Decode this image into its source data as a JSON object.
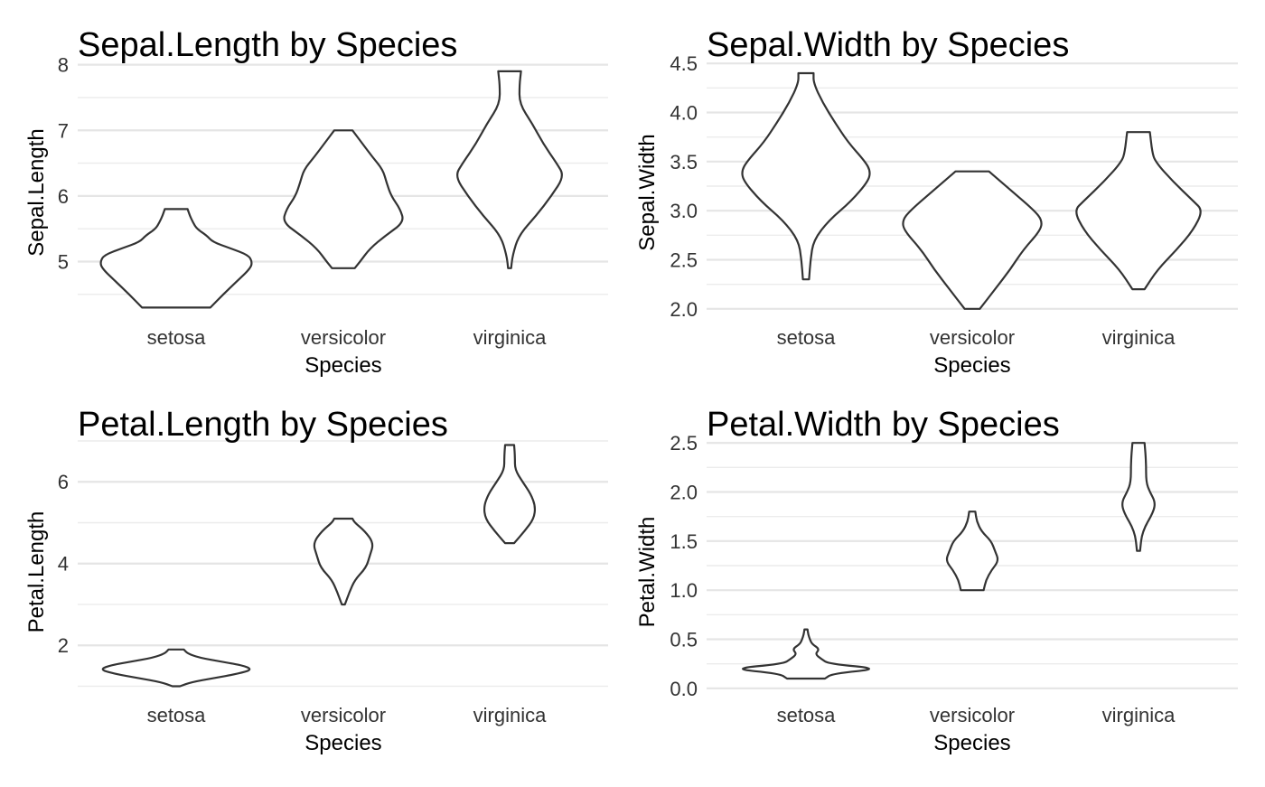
{
  "chart_data": [
    {
      "type": "violin",
      "title": "Sepal.Length by Species",
      "xlabel": "Species",
      "ylabel": "Sepal.Length",
      "categories": [
        "setosa",
        "versicolor",
        "virginica"
      ],
      "ylim": [
        4.25,
        8.05
      ],
      "yticks": [
        5,
        6,
        7,
        8
      ],
      "yticks_labels": [
        "5",
        "6",
        "7",
        "8"
      ],
      "yminor": [
        4.5,
        5.5,
        6.5,
        7.5
      ],
      "violins": [
        {
          "category": "setosa",
          "min": 4.3,
          "max": 5.8,
          "profile": [
            [
              4.3,
              0.45
            ],
            [
              4.5,
              0.62
            ],
            [
              4.7,
              0.8
            ],
            [
              4.9,
              0.98
            ],
            [
              5.0,
              1.0
            ],
            [
              5.1,
              0.95
            ],
            [
              5.2,
              0.72
            ],
            [
              5.3,
              0.48
            ],
            [
              5.4,
              0.4
            ],
            [
              5.5,
              0.27
            ],
            [
              5.6,
              0.22
            ],
            [
              5.7,
              0.18
            ],
            [
              5.8,
              0.15
            ]
          ]
        },
        {
          "category": "versicolor",
          "min": 4.9,
          "max": 7.0,
          "profile": [
            [
              4.9,
              0.15
            ],
            [
              5.0,
              0.22
            ],
            [
              5.2,
              0.35
            ],
            [
              5.4,
              0.56
            ],
            [
              5.6,
              0.8
            ],
            [
              5.8,
              0.75
            ],
            [
              6.0,
              0.63
            ],
            [
              6.2,
              0.57
            ],
            [
              6.4,
              0.52
            ],
            [
              6.6,
              0.38
            ],
            [
              6.8,
              0.25
            ],
            [
              7.0,
              0.12
            ]
          ]
        },
        {
          "category": "virginica",
          "min": 4.9,
          "max": 7.9,
          "profile": [
            [
              4.9,
              0.02
            ],
            [
              5.1,
              0.04
            ],
            [
              5.4,
              0.12
            ],
            [
              5.7,
              0.35
            ],
            [
              6.0,
              0.55
            ],
            [
              6.3,
              0.72
            ],
            [
              6.5,
              0.62
            ],
            [
              6.8,
              0.44
            ],
            [
              7.1,
              0.3
            ],
            [
              7.4,
              0.13
            ],
            [
              7.7,
              0.13
            ],
            [
              7.9,
              0.15
            ]
          ]
        }
      ]
    },
    {
      "type": "violin",
      "title": "Sepal.Width by Species",
      "xlabel": "Species",
      "ylabel": "Sepal.Width",
      "categories": [
        "setosa",
        "versicolor",
        "virginica"
      ],
      "ylim": [
        1.98,
        4.52
      ],
      "yticks": [
        2.0,
        2.5,
        3.0,
        3.5,
        4.0,
        4.5
      ],
      "yticks_labels": [
        "2.0",
        "2.5",
        "3.0",
        "3.5",
        "4.0",
        "4.5"
      ],
      "yminor": [
        2.25,
        2.75,
        3.25,
        3.75,
        4.25
      ],
      "violins": [
        {
          "category": "setosa",
          "min": 2.3,
          "max": 4.4,
          "profile": [
            [
              2.3,
              0.04
            ],
            [
              2.5,
              0.06
            ],
            [
              2.7,
              0.1
            ],
            [
              2.9,
              0.3
            ],
            [
              3.1,
              0.6
            ],
            [
              3.3,
              0.82
            ],
            [
              3.4,
              0.85
            ],
            [
              3.5,
              0.78
            ],
            [
              3.7,
              0.55
            ],
            [
              3.9,
              0.38
            ],
            [
              4.1,
              0.22
            ],
            [
              4.3,
              0.1
            ],
            [
              4.4,
              0.1
            ]
          ]
        },
        {
          "category": "versicolor",
          "min": 2.0,
          "max": 3.4,
          "profile": [
            [
              2.0,
              0.1
            ],
            [
              2.2,
              0.3
            ],
            [
              2.4,
              0.5
            ],
            [
              2.6,
              0.67
            ],
            [
              2.8,
              0.9
            ],
            [
              2.9,
              0.92
            ],
            [
              3.0,
              0.82
            ],
            [
              3.2,
              0.52
            ],
            [
              3.4,
              0.22
            ]
          ]
        },
        {
          "category": "virginica",
          "min": 2.2,
          "max": 3.8,
          "profile": [
            [
              2.2,
              0.08
            ],
            [
              2.4,
              0.25
            ],
            [
              2.6,
              0.5
            ],
            [
              2.8,
              0.72
            ],
            [
              3.0,
              0.85
            ],
            [
              3.1,
              0.72
            ],
            [
              3.3,
              0.45
            ],
            [
              3.5,
              0.22
            ],
            [
              3.6,
              0.18
            ],
            [
              3.8,
              0.15
            ]
          ]
        }
      ]
    },
    {
      "type": "violin",
      "title": "Petal.Length by Species",
      "xlabel": "Species",
      "ylabel": "Petal.Length",
      "categories": [
        "setosa",
        "versicolor",
        "virginica"
      ],
      "ylim": [
        0.9,
        7.0
      ],
      "yticks": [
        2,
        4,
        6
      ],
      "yticks_labels": [
        "2",
        "4",
        "6"
      ],
      "yminor": [
        1,
        3,
        5,
        7
      ],
      "violins": [
        {
          "category": "setosa",
          "min": 1.0,
          "max": 1.9,
          "profile": [
            [
              1.0,
              0.05
            ],
            [
              1.1,
              0.2
            ],
            [
              1.2,
              0.5
            ],
            [
              1.3,
              0.8
            ],
            [
              1.4,
              1.0
            ],
            [
              1.5,
              0.9
            ],
            [
              1.6,
              0.6
            ],
            [
              1.7,
              0.3
            ],
            [
              1.8,
              0.15
            ],
            [
              1.9,
              0.1
            ]
          ]
        },
        {
          "category": "versicolor",
          "min": 3.0,
          "max": 5.1,
          "profile": [
            [
              3.0,
              0.02
            ],
            [
              3.3,
              0.08
            ],
            [
              3.6,
              0.15
            ],
            [
              3.9,
              0.3
            ],
            [
              4.2,
              0.35
            ],
            [
              4.5,
              0.4
            ],
            [
              4.8,
              0.28
            ],
            [
              5.0,
              0.15
            ],
            [
              5.1,
              0.12
            ]
          ]
        },
        {
          "category": "virginica",
          "min": 4.5,
          "max": 6.9,
          "profile": [
            [
              4.5,
              0.06
            ],
            [
              4.8,
              0.2
            ],
            [
              5.1,
              0.32
            ],
            [
              5.4,
              0.34
            ],
            [
              5.7,
              0.28
            ],
            [
              6.0,
              0.17
            ],
            [
              6.3,
              0.07
            ],
            [
              6.6,
              0.07
            ],
            [
              6.9,
              0.06
            ]
          ]
        }
      ]
    },
    {
      "type": "violin",
      "title": "Petal.Width by Species",
      "xlabel": "Species",
      "ylabel": "Petal.Width",
      "categories": [
        "setosa",
        "versicolor",
        "virginica"
      ],
      "ylim": [
        -0.02,
        2.52
      ],
      "yticks": [
        0.0,
        0.5,
        1.0,
        1.5,
        2.0,
        2.5
      ],
      "yticks_labels": [
        "0.0",
        "0.5",
        "1.0",
        "1.5",
        "2.0",
        "2.5"
      ],
      "yminor": [
        0.25,
        0.75,
        1.25,
        1.75,
        2.25
      ],
      "violins": [
        {
          "category": "setosa",
          "min": 0.1,
          "max": 0.6,
          "profile": [
            [
              0.1,
              0.25
            ],
            [
              0.15,
              0.35
            ],
            [
              0.2,
              1.0
            ],
            [
              0.25,
              0.3
            ],
            [
              0.3,
              0.2
            ],
            [
              0.35,
              0.12
            ],
            [
              0.4,
              0.18
            ],
            [
              0.45,
              0.08
            ],
            [
              0.5,
              0.05
            ],
            [
              0.55,
              0.03
            ],
            [
              0.6,
              0.02
            ]
          ]
        },
        {
          "category": "versicolor",
          "min": 1.0,
          "max": 1.8,
          "profile": [
            [
              1.0,
              0.15
            ],
            [
              1.1,
              0.18
            ],
            [
              1.2,
              0.25
            ],
            [
              1.3,
              0.35
            ],
            [
              1.4,
              0.3
            ],
            [
              1.5,
              0.25
            ],
            [
              1.6,
              0.12
            ],
            [
              1.7,
              0.06
            ],
            [
              1.8,
              0.04
            ]
          ]
        },
        {
          "category": "virginica",
          "min": 1.4,
          "max": 2.5,
          "profile": [
            [
              1.4,
              0.02
            ],
            [
              1.6,
              0.05
            ],
            [
              1.8,
              0.2
            ],
            [
              1.9,
              0.22
            ],
            [
              2.0,
              0.15
            ],
            [
              2.1,
              0.1
            ],
            [
              2.3,
              0.1
            ],
            [
              2.5,
              0.08
            ]
          ]
        }
      ]
    }
  ]
}
